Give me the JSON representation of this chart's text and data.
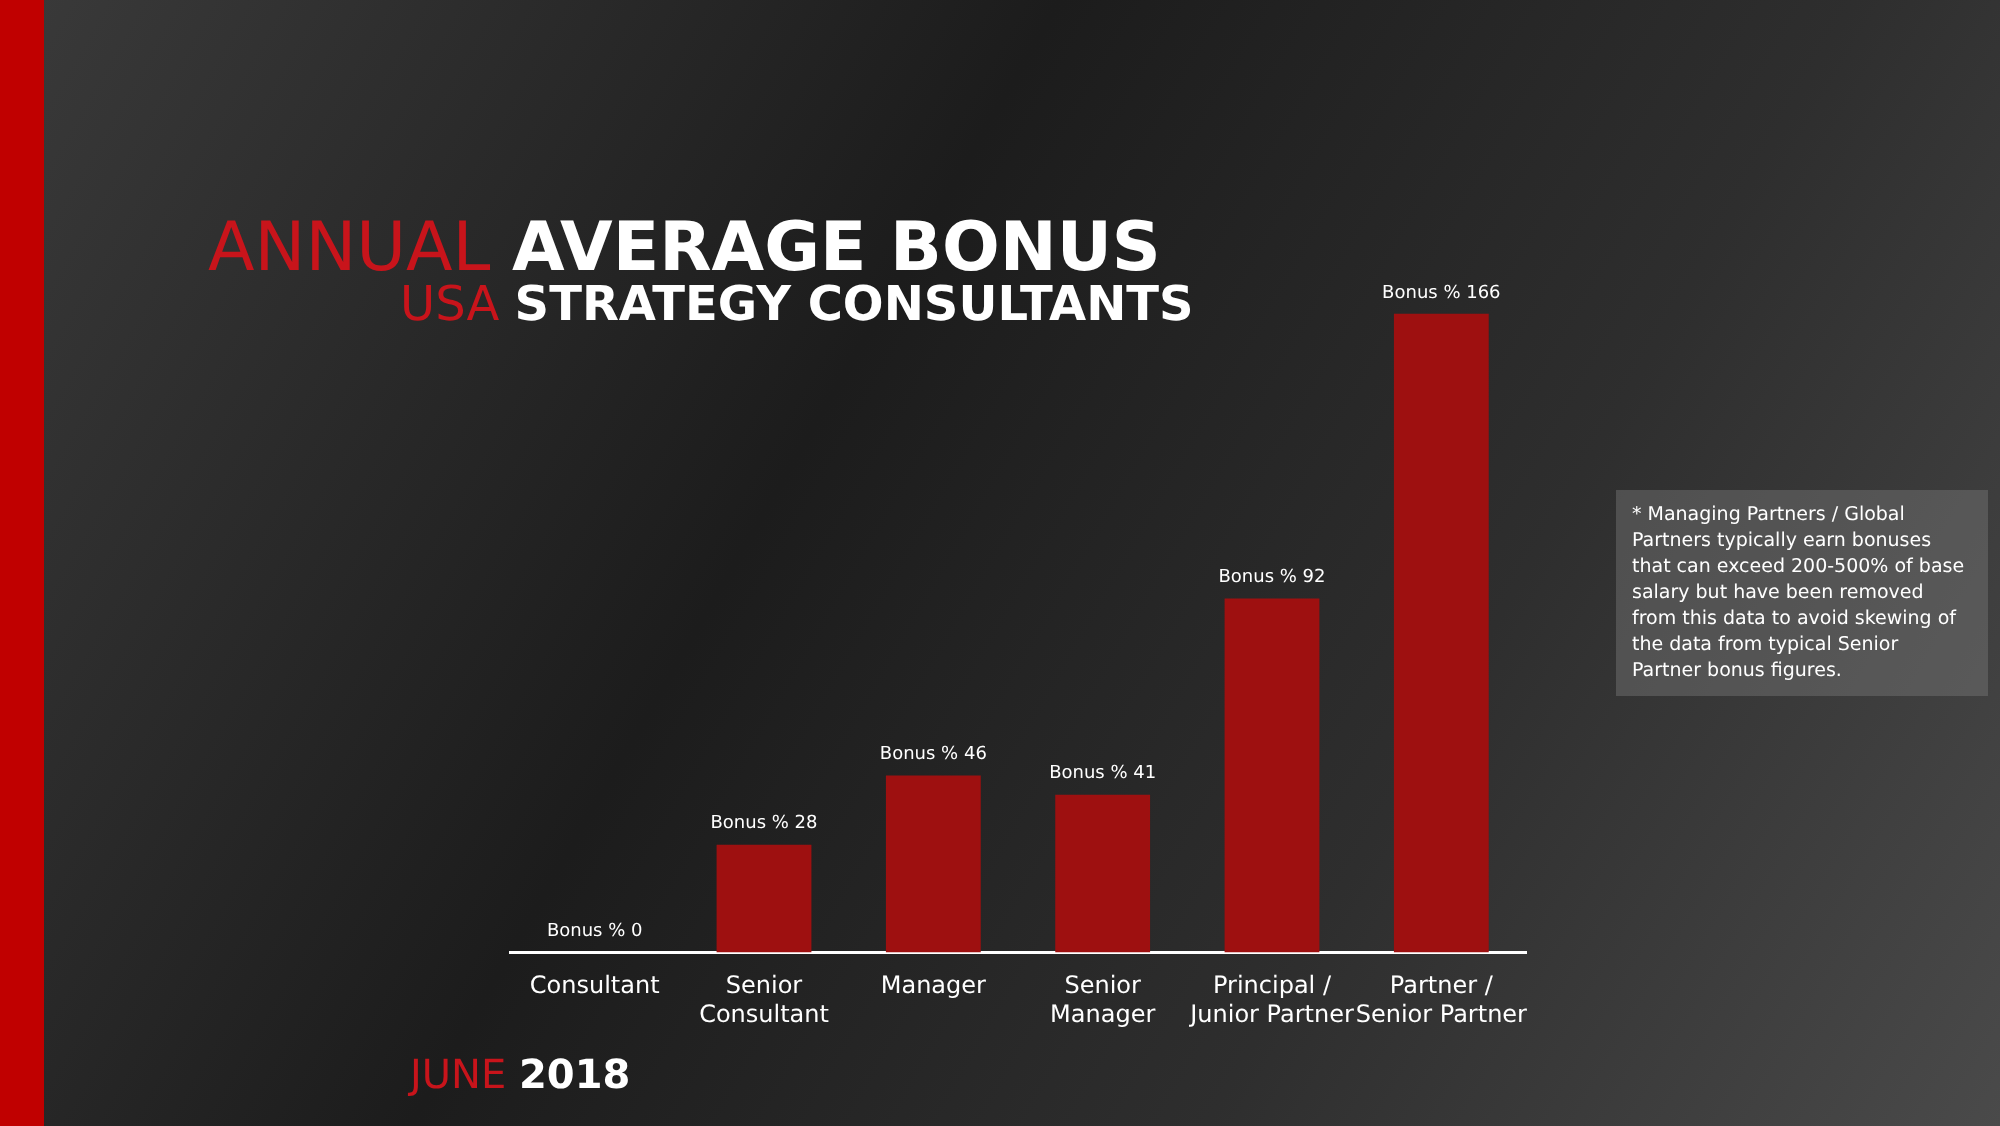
{
  "chart_data": {
    "type": "bar",
    "title": "ANNUAL AVERAGE BONUS",
    "subtitle": "USA STRATEGY CONSULTANTS",
    "categories": [
      "Consultant",
      "Senior Consultant",
      "Manager",
      "Senior Manager",
      "Principal / Junior Partner",
      "Partner / Senior Partner"
    ],
    "values": [
      0,
      28,
      46,
      41,
      92,
      166
    ],
    "value_labels": [
      "Bonus % 0",
      "Bonus % 28",
      "Bonus % 46",
      "Bonus % 41",
      "Bonus % 92",
      "Bonus % 166"
    ],
    "color": "#9e1010",
    "grid": false,
    "legend": false,
    "annotations": [
      "* Managing Partners / Global Partners typically earn  bonuses that can exceed 200-500% of base salary but have been removed from this data to avoid skewing of the data from typical Senior Partner bonus figures.",
      "JUNE 2018"
    ]
  }
}
